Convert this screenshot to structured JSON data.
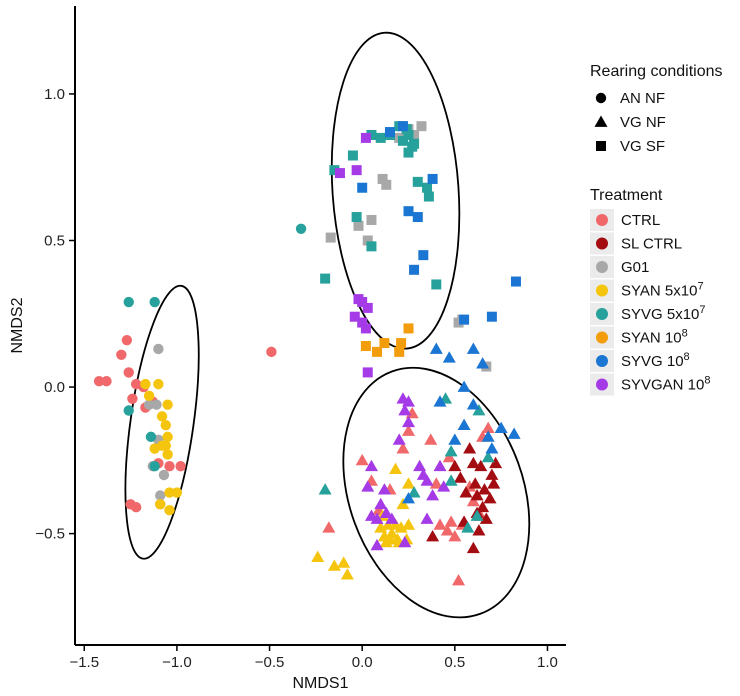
{
  "chart_data": {
    "type": "scatter",
    "title": "",
    "xlabel": "NMDS1",
    "ylabel": "NMDS2",
    "xlim": [
      -1.55,
      1.1
    ],
    "ylim": [
      -0.88,
      1.3
    ],
    "grid": false,
    "x_ticks": [
      -1.5,
      -1.0,
      -0.5,
      0.0,
      0.5,
      1.0
    ],
    "x_tick_labels": [
      "-1.5",
      "-1.0",
      "-0.5",
      "0.0",
      "0.5",
      "1.0"
    ],
    "y_ticks": [
      -0.5,
      0.0,
      0.5,
      1.0
    ],
    "y_tick_labels": [
      "-0.5",
      "0.0",
      "0.5",
      "1.0"
    ],
    "legend_placement": "right",
    "shape_legend": {
      "title": "Rearing conditions",
      "entries": [
        {
          "label": "AN NF",
          "shape": "circle"
        },
        {
          "label": "VG NF",
          "shape": "triangle"
        },
        {
          "label": "VG SF",
          "shape": "square"
        }
      ]
    },
    "color_legend": {
      "title": "Treatment",
      "entries": [
        {
          "key": "CTRL",
          "label": "CTRL",
          "base": "CTRL",
          "sup": "",
          "color": "#f0686a"
        },
        {
          "key": "SLCTRL",
          "label": "SL CTRL",
          "base": "SL CTRL",
          "sup": "",
          "color": "#a30d12"
        },
        {
          "key": "G01",
          "label": "G01",
          "base": "G01",
          "sup": "",
          "color": "#a8a8a8"
        },
        {
          "key": "SYAN7",
          "label": "SYAN 5x10^7",
          "base": "SYAN 5x10",
          "sup": "7",
          "color": "#f5c40d"
        },
        {
          "key": "SYVG7",
          "label": "SYVG 5x10^7",
          "base": "SYVG 5x10",
          "sup": "7",
          "color": "#26a19b"
        },
        {
          "key": "SYAN8",
          "label": "SYAN 10^8",
          "base": "SYAN 10",
          "sup": "8",
          "color": "#f39c0c"
        },
        {
          "key": "SYVG8",
          "label": "SYVG 10^8",
          "base": "SYVG 10",
          "sup": "8",
          "color": "#1a76d2"
        },
        {
          "key": "SYVGAN8",
          "label": "SYVGAN 10^8",
          "base": "SYVGAN 10",
          "sup": "8",
          "color": "#a53be6"
        }
      ]
    },
    "ellipses": [
      {
        "label": "AN NF",
        "cx": -1.08,
        "cy": -0.12,
        "rx": 0.17,
        "ry": 0.47,
        "angle": 8
      },
      {
        "label": "VG SF",
        "cx": 0.18,
        "cy": 0.67,
        "rx": 0.34,
        "ry": 0.54,
        "angle": -4
      },
      {
        "label": "VG NF",
        "cx": 0.4,
        "cy": -0.36,
        "rx": 0.47,
        "ry": 0.44,
        "angle": -20
      }
    ],
    "series": [
      {
        "name": "CTRL",
        "shape": "circle",
        "points": [
          [
            -1.42,
            0.02
          ],
          [
            -1.38,
            0.02
          ],
          [
            -1.3,
            0.11
          ],
          [
            -1.27,
            0.16
          ],
          [
            -1.26,
            0.05
          ],
          [
            -1.22,
            0.01
          ],
          [
            -1.18,
            0.0
          ],
          [
            -1.24,
            -0.04
          ],
          [
            -1.17,
            -0.07
          ],
          [
            -1.13,
            -0.05
          ],
          [
            -1.1,
            -0.26
          ],
          [
            -1.04,
            -0.27
          ],
          [
            -0.98,
            -0.27
          ],
          [
            -1.25,
            -0.4
          ],
          [
            -1.22,
            -0.41
          ],
          [
            -0.49,
            0.12
          ]
        ]
      },
      {
        "name": "CTRL",
        "shape": "triangle",
        "points": [
          [
            -0.18,
            -0.48
          ],
          [
            0.0,
            -0.25
          ],
          [
            0.05,
            -0.32
          ],
          [
            0.09,
            -0.42
          ],
          [
            0.15,
            -0.35
          ],
          [
            0.22,
            -0.21
          ],
          [
            0.25,
            -0.15
          ],
          [
            0.27,
            -0.09
          ],
          [
            0.37,
            -0.18
          ],
          [
            0.4,
            -0.33
          ],
          [
            0.42,
            -0.47
          ],
          [
            0.46,
            -0.49
          ],
          [
            0.48,
            -0.46
          ],
          [
            0.5,
            -0.51
          ],
          [
            0.52,
            -0.66
          ],
          [
            0.54,
            -0.47
          ],
          [
            0.58,
            -0.34
          ],
          [
            0.6,
            -0.39
          ],
          [
            0.64,
            -0.44
          ],
          [
            0.65,
            -0.17
          ],
          [
            0.68,
            -0.14
          ],
          [
            0.47,
            -0.24
          ]
        ]
      },
      {
        "name": "SLCTRL",
        "shape": "triangle",
        "points": [
          [
            0.38,
            -0.51
          ],
          [
            0.5,
            -0.27
          ],
          [
            0.53,
            -0.31
          ],
          [
            0.56,
            -0.36
          ],
          [
            0.58,
            -0.21
          ],
          [
            0.6,
            -0.26
          ],
          [
            0.61,
            -0.33
          ],
          [
            0.62,
            -0.37
          ],
          [
            0.64,
            -0.27
          ],
          [
            0.65,
            -0.41
          ],
          [
            0.66,
            -0.35
          ],
          [
            0.67,
            -0.45
          ],
          [
            0.69,
            -0.38
          ],
          [
            0.7,
            -0.3
          ],
          [
            0.71,
            -0.33
          ],
          [
            0.72,
            -0.26
          ],
          [
            0.62,
            -0.43
          ],
          [
            0.6,
            -0.55
          ],
          [
            0.63,
            -0.49
          ],
          [
            0.55,
            -0.46
          ]
        ]
      },
      {
        "name": "G01",
        "shape": "circle",
        "points": [
          [
            -1.1,
            0.13
          ],
          [
            -1.15,
            -0.06
          ],
          [
            -1.11,
            -0.06
          ],
          [
            -1.1,
            -0.18
          ],
          [
            -1.13,
            -0.27
          ],
          [
            -1.09,
            -0.37
          ],
          [
            -1.09,
            -0.4
          ],
          [
            -1.07,
            -0.3
          ]
        ]
      },
      {
        "name": "G01",
        "shape": "square",
        "points": [
          [
            0.32,
            0.89
          ],
          [
            0.25,
            0.88
          ],
          [
            0.2,
            0.85
          ],
          [
            0.13,
            0.69
          ],
          [
            0.11,
            0.71
          ],
          [
            0.05,
            0.57
          ],
          [
            -0.02,
            0.55
          ],
          [
            0.03,
            0.5
          ],
          [
            -0.17,
            0.51
          ],
          [
            0.52,
            0.22
          ],
          [
            0.54,
            0.23
          ],
          [
            0.67,
            0.07
          ],
          [
            0.22,
            0.89
          ],
          [
            0.28,
            0.86
          ]
        ]
      },
      {
        "name": "SYAN7",
        "shape": "circle",
        "points": [
          [
            -1.17,
            0.01
          ],
          [
            -1.1,
            0.01
          ],
          [
            -1.15,
            -0.03
          ],
          [
            -1.08,
            -0.1
          ],
          [
            -1.05,
            -0.06
          ],
          [
            -1.06,
            -0.13
          ],
          [
            -1.05,
            -0.17
          ],
          [
            -1.06,
            -0.2
          ],
          [
            -1.05,
            -0.23
          ],
          [
            -1.08,
            -0.2
          ],
          [
            -1.04,
            -0.36
          ],
          [
            -1.0,
            -0.36
          ],
          [
            -1.04,
            -0.42
          ],
          [
            -1.09,
            -0.4
          ],
          [
            -1.12,
            -0.21
          ]
        ]
      },
      {
        "name": "SYAN7",
        "shape": "triangle",
        "points": [
          [
            -0.24,
            -0.58
          ],
          [
            -0.15,
            -0.61
          ],
          [
            -0.1,
            -0.6
          ],
          [
            -0.08,
            -0.64
          ],
          [
            0.1,
            -0.48
          ],
          [
            0.12,
            -0.51
          ],
          [
            0.15,
            -0.52
          ],
          [
            0.18,
            -0.47
          ],
          [
            0.2,
            -0.53
          ],
          [
            0.25,
            -0.47
          ],
          [
            0.22,
            -0.4
          ],
          [
            0.25,
            -0.33
          ],
          [
            0.18,
            -0.28
          ],
          [
            0.16,
            -0.5
          ],
          [
            0.24,
            -0.52
          ],
          [
            0.11,
            -0.44
          ],
          [
            0.21,
            -0.48
          ],
          [
            0.19,
            -0.52
          ],
          [
            0.14,
            -0.47
          ],
          [
            0.13,
            -0.53
          ]
        ]
      },
      {
        "name": "SYVG7",
        "shape": "circle",
        "points": [
          [
            -1.26,
            0.29
          ],
          [
            -1.12,
            0.29
          ],
          [
            -1.26,
            -0.08
          ],
          [
            -1.12,
            -0.27
          ],
          [
            -0.33,
            0.54
          ],
          [
            -1.14,
            -0.17
          ]
        ]
      },
      {
        "name": "SYVG7",
        "shape": "square",
        "points": [
          [
            -0.15,
            0.74
          ],
          [
            -0.2,
            0.37
          ],
          [
            -0.05,
            0.79
          ],
          [
            -0.03,
            0.58
          ],
          [
            0.05,
            0.48
          ],
          [
            0.05,
            0.86
          ],
          [
            0.1,
            0.85
          ],
          [
            0.15,
            0.86
          ],
          [
            0.2,
            0.89
          ],
          [
            0.25,
            0.86
          ],
          [
            0.22,
            0.84
          ],
          [
            0.27,
            0.82
          ],
          [
            0.3,
            0.7
          ],
          [
            0.35,
            0.68
          ],
          [
            0.36,
            0.65
          ],
          [
            0.4,
            0.35
          ],
          [
            0.25,
            0.8
          ],
          [
            0.28,
            0.83
          ],
          [
            0.24,
            0.88
          ]
        ]
      },
      {
        "name": "SYVG7",
        "shape": "triangle",
        "points": [
          [
            -0.2,
            -0.35
          ],
          [
            0.28,
            -0.36
          ],
          [
            0.45,
            -0.04
          ],
          [
            0.48,
            -0.22
          ],
          [
            0.48,
            -0.32
          ],
          [
            0.63,
            -0.08
          ],
          [
            0.62,
            -0.44
          ],
          [
            0.68,
            -0.24
          ],
          [
            0.57,
            -0.48
          ]
        ]
      },
      {
        "name": "SYAN8",
        "shape": "square",
        "points": [
          [
            0.02,
            0.14
          ],
          [
            0.12,
            0.15
          ],
          [
            0.21,
            0.15
          ],
          [
            0.25,
            0.2
          ],
          [
            0.08,
            0.12
          ],
          [
            0.2,
            0.12
          ]
        ]
      },
      {
        "name": "SYVG8",
        "shape": "square",
        "points": [
          [
            0.0,
            0.68
          ],
          [
            0.15,
            0.87
          ],
          [
            0.22,
            0.89
          ],
          [
            0.25,
            0.6
          ],
          [
            0.3,
            0.58
          ],
          [
            0.33,
            0.45
          ],
          [
            0.28,
            0.4
          ],
          [
            0.55,
            0.23
          ],
          [
            0.7,
            0.24
          ],
          [
            0.83,
            0.36
          ],
          [
            0.38,
            0.71
          ]
        ]
      },
      {
        "name": "SYVG8",
        "shape": "triangle",
        "points": [
          [
            0.4,
            0.13
          ],
          [
            0.47,
            0.1
          ],
          [
            0.6,
            0.13
          ],
          [
            0.65,
            0.08
          ],
          [
            0.55,
            0.0
          ],
          [
            0.42,
            -0.05
          ],
          [
            0.6,
            -0.06
          ],
          [
            0.75,
            -0.14
          ],
          [
            0.82,
            -0.16
          ],
          [
            0.7,
            -0.21
          ],
          [
            0.25,
            -0.38
          ],
          [
            0.5,
            -0.18
          ],
          [
            0.55,
            -0.13
          ],
          [
            0.68,
            -0.17
          ]
        ]
      },
      {
        "name": "SYVGAN8",
        "shape": "square",
        "points": [
          [
            -0.12,
            0.73
          ],
          [
            0.02,
            0.85
          ],
          [
            -0.03,
            0.74
          ],
          [
            0.03,
            0.27
          ],
          [
            -0.02,
            0.3
          ],
          [
            0.0,
            0.29
          ],
          [
            -0.04,
            0.24
          ],
          [
            0.0,
            0.22
          ],
          [
            0.02,
            0.2
          ],
          [
            0.03,
            0.05
          ]
        ]
      },
      {
        "name": "SYVGAN8",
        "shape": "triangle",
        "points": [
          [
            0.22,
            -0.04
          ],
          [
            0.25,
            -0.05
          ],
          [
            0.23,
            -0.08
          ],
          [
            0.25,
            -0.12
          ],
          [
            0.2,
            -0.18
          ],
          [
            0.05,
            -0.27
          ],
          [
            0.12,
            -0.35
          ],
          [
            0.1,
            -0.4
          ],
          [
            0.05,
            -0.44
          ],
          [
            0.08,
            -0.45
          ],
          [
            0.08,
            -0.54
          ],
          [
            0.16,
            -0.45
          ],
          [
            0.31,
            -0.27
          ],
          [
            0.33,
            -0.3
          ],
          [
            0.35,
            -0.32
          ],
          [
            0.42,
            -0.27
          ],
          [
            0.44,
            -0.34
          ],
          [
            0.38,
            -0.37
          ],
          [
            0.03,
            -0.34
          ],
          [
            0.13,
            -0.43
          ],
          [
            0.23,
            -0.53
          ],
          [
            0.35,
            -0.45
          ]
        ]
      }
    ]
  }
}
